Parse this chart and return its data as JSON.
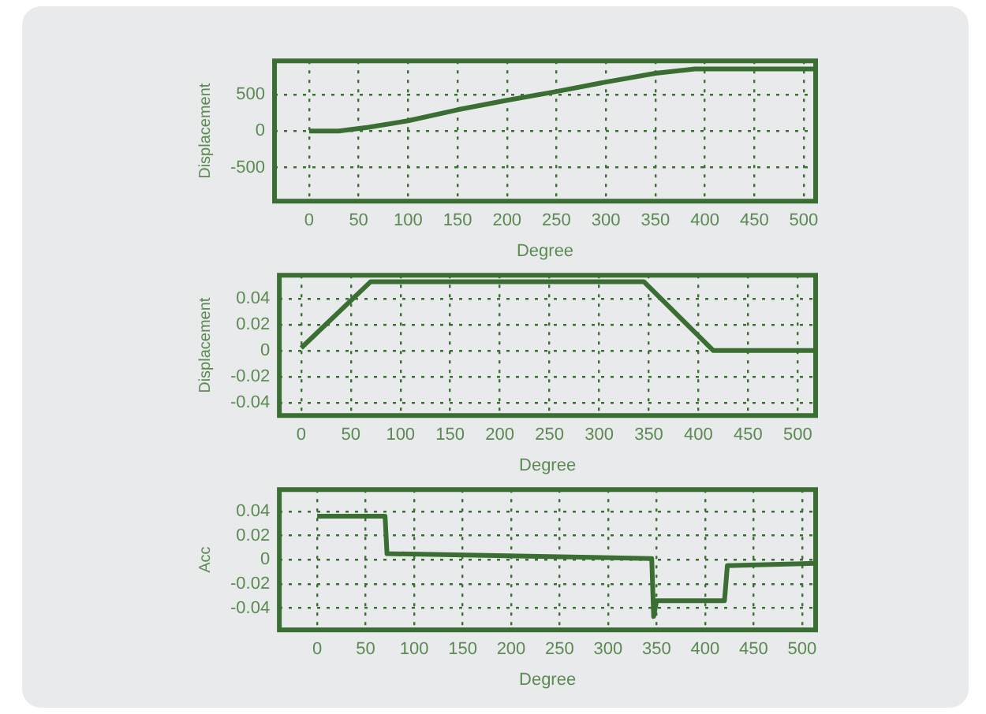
{
  "chart_data": [
    {
      "type": "line",
      "xlabel": "Degree",
      "ylabel": "Displacement",
      "xlim": [
        -35,
        512
      ],
      "ylim": [
        -960,
        960
      ],
      "xticks": [
        0,
        50,
        100,
        150,
        200,
        250,
        300,
        350,
        400,
        450,
        500
      ],
      "yticks": [
        -500,
        0,
        500
      ],
      "grid": true,
      "legend": false,
      "marker": "none",
      "line_style": "solid",
      "series": [
        {
          "color": "#3b6e33",
          "x": [
            0,
            30,
            60,
            100,
            150,
            200,
            250,
            300,
            350,
            390,
            512
          ],
          "values": [
            0,
            0,
            50,
            140,
            290,
            420,
            540,
            670,
            790,
            850,
            850
          ]
        }
      ]
    },
    {
      "type": "line",
      "xlabel": "Degree",
      "ylabel": "Displacement",
      "xlim": [
        -22,
        518
      ],
      "ylim": [
        -0.05,
        0.058
      ],
      "xticks": [
        0,
        50,
        100,
        150,
        200,
        250,
        300,
        350,
        400,
        450,
        500
      ],
      "yticks": [
        -0.04,
        -0.02,
        0,
        0.02,
        0.04
      ],
      "grid": true,
      "legend": false,
      "marker": "none",
      "line_style": "solid",
      "series": [
        {
          "color": "#3b6e33",
          "x": [
            0,
            70,
            345,
            415,
            518
          ],
          "values": [
            0.002,
            0.053,
            0.053,
            0,
            0
          ]
        }
      ]
    },
    {
      "type": "line",
      "xlabel": "Degree",
      "ylabel": "Acc",
      "xlim": [
        -39,
        514
      ],
      "ylim": [
        -0.058,
        0.058
      ],
      "xticks": [
        0,
        50,
        100,
        150,
        200,
        250,
        300,
        350,
        400,
        450,
        500
      ],
      "yticks": [
        -0.04,
        -0.02,
        0,
        0.02,
        0.04
      ],
      "grid": true,
      "legend": false,
      "marker": "none",
      "line_style": "solid",
      "series": [
        {
          "color": "#3b6e33",
          "x": [
            0,
            70,
            72,
            345,
            347,
            350,
            420,
            423,
            514
          ],
          "values": [
            0.036,
            0.036,
            0.005,
            0.001,
            -0.047,
            -0.034,
            -0.034,
            -0.005,
            -0.003
          ]
        }
      ]
    }
  ]
}
